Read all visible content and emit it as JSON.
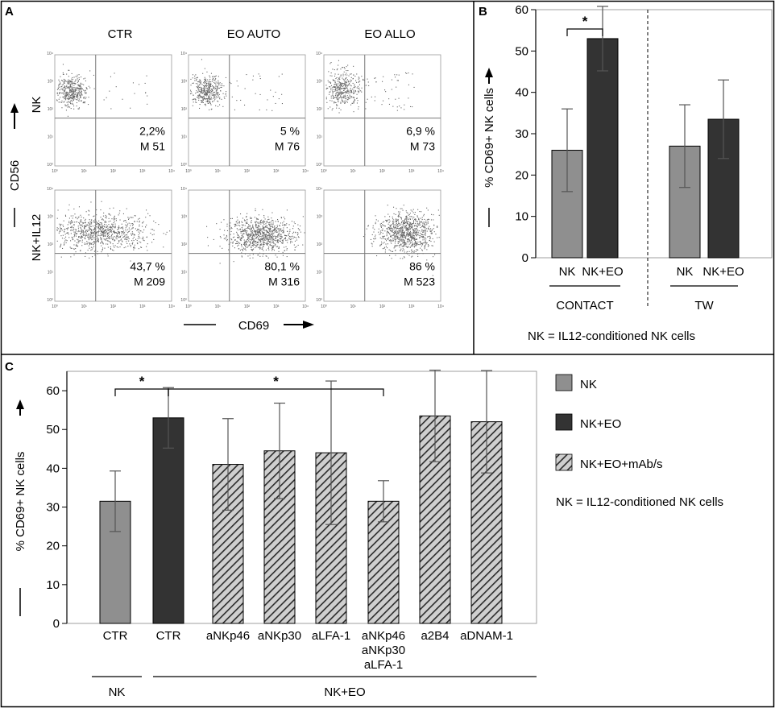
{
  "panel_labels": {
    "a": "A",
    "b": "B",
    "c": "C"
  },
  "legend_note": "NK = IL12-conditioned NK cells",
  "colors": {
    "nk": "#8f8f8f",
    "nk_eo": "#333333",
    "hatch_bg": "#cfcfcf",
    "hatch_line": "#2a2a2a"
  },
  "panel_a": {
    "col_titles": [
      "CTR",
      "EO AUTO",
      "EO ALLO"
    ],
    "row_labels": [
      "NK",
      "NK+IL12"
    ],
    "y_axis": "CD56",
    "x_axis": "CD69",
    "tick_labels": [
      "10⁰",
      "10¹",
      "10²",
      "10³",
      "10⁴"
    ],
    "plots": [
      [
        {
          "pct": "2,2%",
          "mfi": "M 51",
          "pop": {
            "cx": 0.14,
            "cy": 0.32,
            "sx": 0.07,
            "sy": 0.07,
            "n": 420,
            "tail": 18
          }
        },
        {
          "pct": "5 %",
          "mfi": "M 76",
          "pop": {
            "cx": 0.15,
            "cy": 0.32,
            "sx": 0.07,
            "sy": 0.07,
            "n": 420,
            "tail": 30
          }
        },
        {
          "pct": "6,9 %",
          "mfi": "M 73",
          "pop": {
            "cx": 0.16,
            "cy": 0.3,
            "sx": 0.08,
            "sy": 0.08,
            "n": 420,
            "tail": 45
          }
        }
      ],
      [
        {
          "pct": "43,7 %",
          "mfi": "M 209",
          "pop": {
            "cx": 0.38,
            "cy": 0.37,
            "sx": 0.22,
            "sy": 0.08,
            "n": 900,
            "tail": 0
          }
        },
        {
          "pct": "80,1 %",
          "mfi": "M 316",
          "pop": {
            "cx": 0.62,
            "cy": 0.4,
            "sx": 0.15,
            "sy": 0.08,
            "n": 900,
            "tail": 0
          }
        },
        {
          "pct": "86 %",
          "mfi": "M 523",
          "pop": {
            "cx": 0.7,
            "cy": 0.38,
            "sx": 0.12,
            "sy": 0.09,
            "n": 900,
            "tail": 0
          }
        }
      ]
    ]
  },
  "chart_data": [
    {
      "id": "panel-b",
      "type": "bar",
      "title": "",
      "ylabel": "% CD69+ NK cells",
      "ylim": [
        0,
        60
      ],
      "yticks": [
        0,
        10,
        20,
        30,
        40,
        50,
        60
      ],
      "categories": [
        "NK",
        "NK+EO",
        "NK",
        "NK+EO"
      ],
      "values": [
        26,
        53,
        27,
        33.5
      ],
      "errors": [
        10,
        7.8,
        10,
        9.5
      ],
      "groups": [
        {
          "label": "CONTACT",
          "indices": [
            0,
            1
          ]
        },
        {
          "label": "TW",
          "indices": [
            2,
            3
          ]
        }
      ],
      "bar_types": [
        "nk",
        "nk_eo",
        "nk",
        "nk_eo"
      ],
      "significance": [
        {
          "from": 0,
          "to": 1,
          "label": "*"
        }
      ],
      "note": "NK = IL12-conditioned NK cells"
    },
    {
      "id": "panel-c",
      "type": "bar",
      "title": "",
      "ylabel": "% CD69+ NK cells",
      "ylim": [
        0,
        65
      ],
      "yticks": [
        0,
        10,
        20,
        30,
        40,
        50,
        60
      ],
      "categories": [
        "CTR",
        "CTR",
        "aNKp46",
        "aNKp30",
        "aLFA-1",
        "aNKp46\naNKp30\naLFA-1",
        "a2B4",
        "aDNAM-1"
      ],
      "values": [
        31.5,
        53,
        41,
        44.5,
        44,
        31.5,
        53.5,
        52
      ],
      "errors": [
        7.8,
        7.8,
        11.8,
        12.3,
        18.5,
        5.3,
        11.8,
        13.2
      ],
      "bar_types": [
        "nk",
        "nk_eo",
        "hatch",
        "hatch",
        "hatch",
        "hatch",
        "hatch",
        "hatch"
      ],
      "groups": [
        {
          "label": "NK",
          "indices": [
            0
          ]
        },
        {
          "label": "NK+EO",
          "indices": [
            1,
            2,
            3,
            4,
            5,
            6,
            7
          ]
        }
      ],
      "significance": [
        {
          "from": 0,
          "to": 1,
          "label": "*"
        },
        {
          "from": 1,
          "to": 5,
          "label": "*"
        }
      ],
      "legend": [
        {
          "label": "NK",
          "type": "nk"
        },
        {
          "label": "NK+EO",
          "type": "nk_eo"
        },
        {
          "label": "NK+EO+mAb/s",
          "type": "hatch"
        }
      ],
      "note": "NK = IL12-conditioned NK cells"
    }
  ]
}
